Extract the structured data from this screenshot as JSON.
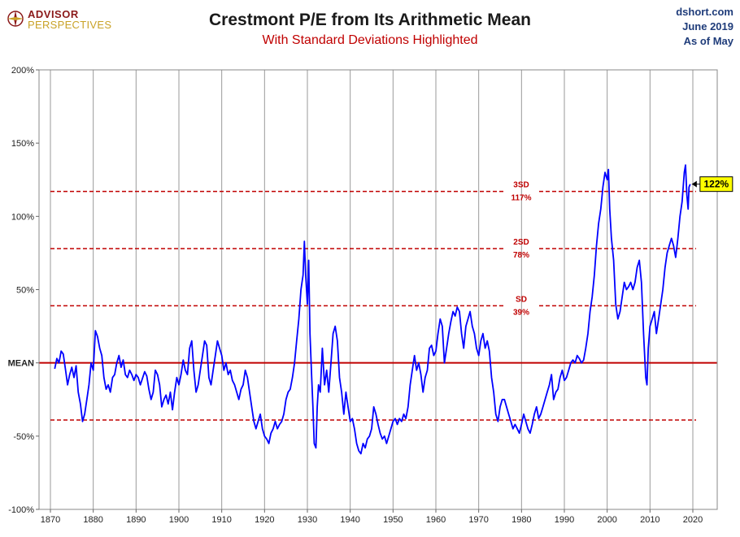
{
  "header": {
    "logo_top": "ADVISOR",
    "logo_bottom": "PERSPECTIVES",
    "source": "dshort.com",
    "date": "June 2019",
    "as_of": "As of May"
  },
  "colors": {
    "line": "#0000ff",
    "mean": "#c00000",
    "sd": "#c00000",
    "callout": "#ffff00"
  },
  "chart_data": {
    "type": "line",
    "title": "Crestmont P/E from Its Arithmetic Mean",
    "subtitle": "With Standard Deviations Highlighted",
    "xlim": [
      1870,
      2020
    ],
    "ylim": [
      -100,
      200
    ],
    "x_ticks": [
      "1870",
      "1880",
      "1890",
      "1900",
      "1910",
      "1920",
      "1930",
      "1940",
      "1950",
      "1960",
      "1970",
      "1980",
      "1990",
      "2000",
      "2010",
      "2020"
    ],
    "y_ticks": [
      {
        "value": 200,
        "label": "200%"
      },
      {
        "value": 150,
        "label": "150%"
      },
      {
        "value": 100,
        "label": "100%"
      },
      {
        "value": 50,
        "label": "50%"
      },
      {
        "value": 0,
        "label": "MEAN"
      },
      {
        "value": -50,
        "label": "-50%"
      },
      {
        "value": -100,
        "label": "-100%"
      }
    ],
    "reference_lines": [
      {
        "value": 117,
        "label1": "3SD",
        "label2": "117%"
      },
      {
        "value": 78,
        "label1": "2SD",
        "label2": "78%"
      },
      {
        "value": 39,
        "label1": "SD",
        "label2": "39%"
      },
      {
        "value": -39,
        "label1": "",
        "label2": ""
      }
    ],
    "mean_value": 0,
    "latest": {
      "x": 2019.4,
      "value": 122,
      "label": "122%"
    },
    "series": [
      {
        "name": "Crestmont P/E vs Mean",
        "points": [
          [
            1871,
            -4
          ],
          [
            1871.5,
            3
          ],
          [
            1872,
            0
          ],
          [
            1872.5,
            8
          ],
          [
            1873,
            6
          ],
          [
            1873.5,
            -4
          ],
          [
            1874,
            -15
          ],
          [
            1874.5,
            -8
          ],
          [
            1875,
            -3
          ],
          [
            1875.5,
            -10
          ],
          [
            1876,
            -2
          ],
          [
            1876.5,
            -20
          ],
          [
            1877,
            -28
          ],
          [
            1877.5,
            -40
          ],
          [
            1878,
            -35
          ],
          [
            1878.5,
            -25
          ],
          [
            1879,
            -15
          ],
          [
            1879.5,
            0
          ],
          [
            1880,
            -5
          ],
          [
            1880.5,
            22
          ],
          [
            1881,
            18
          ],
          [
            1881.5,
            10
          ],
          [
            1882,
            5
          ],
          [
            1882.5,
            -10
          ],
          [
            1883,
            -18
          ],
          [
            1883.5,
            -15
          ],
          [
            1884,
            -20
          ],
          [
            1884.5,
            -10
          ],
          [
            1885,
            -8
          ],
          [
            1885.5,
            0
          ],
          [
            1886,
            5
          ],
          [
            1886.5,
            -3
          ],
          [
            1887,
            2
          ],
          [
            1887.5,
            -8
          ],
          [
            1888,
            -10
          ],
          [
            1888.5,
            -5
          ],
          [
            1889,
            -8
          ],
          [
            1889.5,
            -12
          ],
          [
            1890,
            -8
          ],
          [
            1890.5,
            -10
          ],
          [
            1891,
            -15
          ],
          [
            1892,
            -6
          ],
          [
            1892.5,
            -9
          ],
          [
            1893,
            -18
          ],
          [
            1893.5,
            -25
          ],
          [
            1894,
            -20
          ],
          [
            1894.5,
            -5
          ],
          [
            1895,
            -8
          ],
          [
            1895.5,
            -15
          ],
          [
            1896,
            -30
          ],
          [
            1896.5,
            -25
          ],
          [
            1897,
            -22
          ],
          [
            1897.5,
            -28
          ],
          [
            1898,
            -20
          ],
          [
            1898.5,
            -32
          ],
          [
            1899,
            -20
          ],
          [
            1899.5,
            -10
          ],
          [
            1900,
            -15
          ],
          [
            1900.5,
            -8
          ],
          [
            1901,
            2
          ],
          [
            1901.5,
            -5
          ],
          [
            1902,
            -8
          ],
          [
            1902.5,
            10
          ],
          [
            1903,
            15
          ],
          [
            1903.5,
            -5
          ],
          [
            1904,
            -20
          ],
          [
            1904.5,
            -15
          ],
          [
            1905,
            -5
          ],
          [
            1905.5,
            5
          ],
          [
            1906,
            15
          ],
          [
            1906.5,
            12
          ],
          [
            1907,
            -10
          ],
          [
            1907.5,
            -15
          ],
          [
            1908,
            -5
          ],
          [
            1908.5,
            5
          ],
          [
            1909,
            15
          ],
          [
            1909.5,
            10
          ],
          [
            1910,
            5
          ],
          [
            1910.5,
            -5
          ],
          [
            1911,
            0
          ],
          [
            1911.5,
            -8
          ],
          [
            1912,
            -5
          ],
          [
            1912.5,
            -12
          ],
          [
            1913,
            -15
          ],
          [
            1913.5,
            -20
          ],
          [
            1914,
            -25
          ],
          [
            1914.5,
            -18
          ],
          [
            1915,
            -15
          ],
          [
            1915.5,
            -5
          ],
          [
            1916,
            -10
          ],
          [
            1916.5,
            -20
          ],
          [
            1917,
            -30
          ],
          [
            1917.5,
            -40
          ],
          [
            1918,
            -45
          ],
          [
            1918.5,
            -40
          ],
          [
            1919,
            -35
          ],
          [
            1919.5,
            -45
          ],
          [
            1920,
            -50
          ],
          [
            1920.5,
            -52
          ],
          [
            1921,
            -55
          ],
          [
            1921.5,
            -48
          ],
          [
            1922,
            -45
          ],
          [
            1922.5,
            -40
          ],
          [
            1923,
            -45
          ],
          [
            1923.5,
            -42
          ],
          [
            1924,
            -40
          ],
          [
            1924.5,
            -35
          ],
          [
            1925,
            -25
          ],
          [
            1925.5,
            -20
          ],
          [
            1926,
            -18
          ],
          [
            1926.5,
            -10
          ],
          [
            1927,
            0
          ],
          [
            1927.5,
            15
          ],
          [
            1928,
            30
          ],
          [
            1928.5,
            50
          ],
          [
            1929,
            60
          ],
          [
            1929.3,
            83
          ],
          [
            1929.6,
            60
          ],
          [
            1930,
            40
          ],
          [
            1930.3,
            70
          ],
          [
            1930.6,
            20
          ],
          [
            1931,
            -10
          ],
          [
            1931.3,
            -30
          ],
          [
            1931.6,
            -55
          ],
          [
            1932,
            -58
          ],
          [
            1932.3,
            -30
          ],
          [
            1932.6,
            -15
          ],
          [
            1933,
            -20
          ],
          [
            1933.5,
            10
          ],
          [
            1934,
            -15
          ],
          [
            1934.5,
            -5
          ],
          [
            1935,
            -20
          ],
          [
            1935.5,
            0
          ],
          [
            1936,
            20
          ],
          [
            1936.5,
            25
          ],
          [
            1937,
            15
          ],
          [
            1937.5,
            -10
          ],
          [
            1938,
            -20
          ],
          [
            1938.5,
            -35
          ],
          [
            1939,
            -20
          ],
          [
            1939.5,
            -30
          ],
          [
            1940,
            -40
          ],
          [
            1940.5,
            -38
          ],
          [
            1941,
            -45
          ],
          [
            1941.5,
            -55
          ],
          [
            1942,
            -60
          ],
          [
            1942.5,
            -62
          ],
          [
            1943,
            -55
          ],
          [
            1943.5,
            -58
          ],
          [
            1944,
            -52
          ],
          [
            1944.5,
            -50
          ],
          [
            1945,
            -45
          ],
          [
            1945.5,
            -30
          ],
          [
            1946,
            -35
          ],
          [
            1946.5,
            -42
          ],
          [
            1947,
            -48
          ],
          [
            1947.5,
            -52
          ],
          [
            1948,
            -50
          ],
          [
            1948.5,
            -55
          ],
          [
            1949,
            -50
          ],
          [
            1949.5,
            -45
          ],
          [
            1950,
            -40
          ],
          [
            1950.5,
            -38
          ],
          [
            1951,
            -42
          ],
          [
            1951.5,
            -38
          ],
          [
            1952,
            -40
          ],
          [
            1952.5,
            -35
          ],
          [
            1953,
            -38
          ],
          [
            1953.5,
            -30
          ],
          [
            1954,
            -15
          ],
          [
            1954.5,
            -5
          ],
          [
            1955,
            5
          ],
          [
            1955.5,
            -5
          ],
          [
            1956,
            0
          ],
          [
            1956.5,
            -8
          ],
          [
            1957,
            -20
          ],
          [
            1957.5,
            -10
          ],
          [
            1958,
            -5
          ],
          [
            1958.5,
            10
          ],
          [
            1959,
            12
          ],
          [
            1959.5,
            5
          ],
          [
            1960,
            8
          ],
          [
            1960.5,
            20
          ],
          [
            1961,
            30
          ],
          [
            1961.5,
            25
          ],
          [
            1962,
            0
          ],
          [
            1962.5,
            10
          ],
          [
            1963,
            20
          ],
          [
            1963.5,
            28
          ],
          [
            1964,
            35
          ],
          [
            1964.5,
            32
          ],
          [
            1965,
            38
          ],
          [
            1965.5,
            35
          ],
          [
            1966,
            20
          ],
          [
            1966.5,
            10
          ],
          [
            1967,
            25
          ],
          [
            1967.5,
            30
          ],
          [
            1968,
            35
          ],
          [
            1968.5,
            25
          ],
          [
            1969,
            20
          ],
          [
            1969.5,
            10
          ],
          [
            1970,
            5
          ],
          [
            1970.5,
            15
          ],
          [
            1971,
            20
          ],
          [
            1971.5,
            10
          ],
          [
            1972,
            15
          ],
          [
            1972.5,
            8
          ],
          [
            1973,
            -10
          ],
          [
            1973.5,
            -20
          ],
          [
            1974,
            -35
          ],
          [
            1974.5,
            -40
          ],
          [
            1975,
            -30
          ],
          [
            1975.5,
            -25
          ],
          [
            1976,
            -25
          ],
          [
            1976.5,
            -30
          ],
          [
            1977,
            -35
          ],
          [
            1977.5,
            -40
          ],
          [
            1978,
            -45
          ],
          [
            1978.5,
            -42
          ],
          [
            1979,
            -45
          ],
          [
            1979.5,
            -48
          ],
          [
            1980,
            -42
          ],
          [
            1980.5,
            -35
          ],
          [
            1981,
            -40
          ],
          [
            1981.5,
            -45
          ],
          [
            1982,
            -48
          ],
          [
            1982.5,
            -42
          ],
          [
            1983,
            -35
          ],
          [
            1983.5,
            -30
          ],
          [
            1984,
            -38
          ],
          [
            1984.5,
            -35
          ],
          [
            1985,
            -30
          ],
          [
            1985.5,
            -25
          ],
          [
            1986,
            -20
          ],
          [
            1986.5,
            -15
          ],
          [
            1987,
            -8
          ],
          [
            1987.5,
            -25
          ],
          [
            1988,
            -20
          ],
          [
            1988.5,
            -18
          ],
          [
            1989,
            -10
          ],
          [
            1989.5,
            -5
          ],
          [
            1990,
            -12
          ],
          [
            1990.5,
            -10
          ],
          [
            1991,
            -5
          ],
          [
            1991.5,
            0
          ],
          [
            1992,
            2
          ],
          [
            1992.5,
            0
          ],
          [
            1993,
            5
          ],
          [
            1993.5,
            3
          ],
          [
            1994,
            0
          ],
          [
            1994.5,
            2
          ],
          [
            1995,
            10
          ],
          [
            1995.5,
            20
          ],
          [
            1996,
            35
          ],
          [
            1996.5,
            45
          ],
          [
            1997,
            60
          ],
          [
            1997.5,
            80
          ],
          [
            1998,
            95
          ],
          [
            1998.5,
            105
          ],
          [
            1999,
            120
          ],
          [
            1999.5,
            130
          ],
          [
            2000,
            125
          ],
          [
            2000.3,
            132
          ],
          [
            2000.6,
            105
          ],
          [
            2001,
            85
          ],
          [
            2001.5,
            70
          ],
          [
            2002,
            40
          ],
          [
            2002.5,
            30
          ],
          [
            2003,
            35
          ],
          [
            2003.5,
            45
          ],
          [
            2004,
            55
          ],
          [
            2004.5,
            50
          ],
          [
            2005,
            52
          ],
          [
            2005.5,
            55
          ],
          [
            2006,
            50
          ],
          [
            2006.5,
            55
          ],
          [
            2007,
            65
          ],
          [
            2007.5,
            70
          ],
          [
            2008,
            55
          ],
          [
            2008.5,
            20
          ],
          [
            2009,
            -10
          ],
          [
            2009.3,
            -15
          ],
          [
            2009.6,
            10
          ],
          [
            2010,
            25
          ],
          [
            2010.5,
            30
          ],
          [
            2011,
            35
          ],
          [
            2011.5,
            20
          ],
          [
            2012,
            30
          ],
          [
            2012.5,
            40
          ],
          [
            2013,
            50
          ],
          [
            2013.5,
            65
          ],
          [
            2014,
            75
          ],
          [
            2014.5,
            80
          ],
          [
            2015,
            85
          ],
          [
            2015.5,
            80
          ],
          [
            2016,
            72
          ],
          [
            2016.5,
            85
          ],
          [
            2017,
            100
          ],
          [
            2017.5,
            110
          ],
          [
            2018,
            130
          ],
          [
            2018.3,
            135
          ],
          [
            2018.6,
            115
          ],
          [
            2018.9,
            105
          ],
          [
            2019.1,
            120
          ],
          [
            2019.4,
            122
          ]
        ]
      }
    ]
  }
}
